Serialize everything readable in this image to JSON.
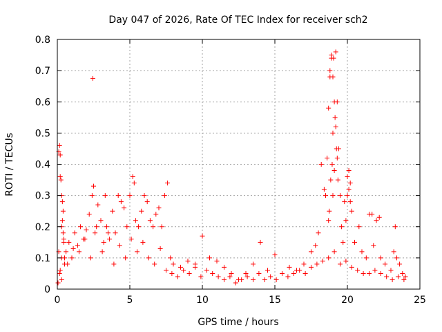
{
  "chart_data": {
    "type": "scatter",
    "title": "Day 047 of 2026, Rate Of TEC Index for receiver sch2",
    "xlabel": "GPS time / hours",
    "ylabel": "ROTI / TECUs",
    "xlim": [
      0,
      25
    ],
    "ylim": [
      0,
      0.8
    ],
    "x_ticks": [
      "0",
      "5",
      "10",
      "15",
      "20",
      "25"
    ],
    "y_ticks": [
      "0",
      "0.1",
      "0.2",
      "0.3",
      "0.4",
      "0.5",
      "0.6",
      "0.7",
      "0.8"
    ],
    "grid": true,
    "marker": "+",
    "marker_color": "#ff0000",
    "series": [
      {
        "x": [
          0.05,
          0.1,
          0.15,
          0.2,
          0.25,
          0.3,
          0.35,
          0.4,
          0.45,
          0.5,
          0.1,
          0.2,
          0.3,
          0.4,
          0.5,
          0.15,
          0.35,
          0.45,
          0.2,
          0.3,
          0.6,
          0.8,
          1.0,
          1.2,
          1.4,
          1.6,
          1.8,
          2.0,
          2.2,
          2.4,
          2.45,
          2.5,
          2.6,
          2.8,
          3.0,
          3.2,
          3.3,
          3.4,
          3.6,
          3.8,
          4.0,
          4.2,
          4.4,
          4.6,
          4.8,
          5.0,
          5.2,
          5.3,
          5.4,
          5.6,
          5.8,
          6.0,
          6.2,
          6.4,
          6.6,
          6.8,
          7.0,
          7.2,
          7.4,
          7.6,
          7.8,
          8.0,
          8.5,
          9.0,
          9.5,
          10.0,
          10.5,
          11.0,
          11.5,
          12.0,
          12.5,
          13.0,
          13.5,
          14.0,
          14.5,
          15.0,
          15.5,
          16.0,
          16.5,
          17.0,
          17.5,
          17.8,
          18.0,
          18.2,
          18.4,
          18.5,
          18.6,
          18.7,
          18.8,
          18.9,
          19.0,
          19.1,
          19.2,
          19.3,
          19.4,
          19.5,
          19.6,
          19.7,
          19.8,
          19.9,
          20.0,
          20.1,
          20.2,
          20.3,
          20.5,
          20.8,
          21.0,
          21.3,
          21.5,
          21.8,
          22.0,
          22.3,
          22.6,
          23.0,
          23.2,
          23.4,
          23.6,
          23.8,
          24.0,
          0.3,
          0.7,
          1.1,
          1.5,
          1.9,
          2.3,
          2.7,
          3.1,
          3.5,
          3.9,
          4.3,
          4.7,
          5.1,
          5.5,
          5.9,
          6.3,
          6.7,
          7.1,
          7.5,
          7.9,
          8.3,
          8.7,
          9.1,
          9.5,
          9.9,
          10.3,
          10.7,
          11.1,
          11.5,
          11.9,
          12.3,
          12.7,
          13.1,
          13.5,
          13.9,
          14.3,
          14.7,
          15.1,
          15.5,
          15.9,
          16.3,
          16.7,
          17.1,
          17.5,
          17.9,
          18.3,
          18.7,
          19.1,
          19.5,
          19.9,
          20.3,
          20.7,
          21.1,
          21.5,
          21.9,
          22.3,
          22.7,
          23.1,
          23.5,
          23.9,
          18.8,
          18.9,
          19.0,
          19.05,
          19.1,
          19.15,
          19.2,
          19.25,
          18.85,
          18.95,
          19.3,
          19.35,
          18.7,
          18.75,
          19.0,
          20.0,
          20.1,
          20.2,
          21.7,
          22.2,
          23.3
        ],
        "y": [
          0.02,
          0.44,
          0.46,
          0.43,
          0.35,
          0.3,
          0.28,
          0.25,
          0.15,
          0.08,
          0.12,
          0.36,
          0.2,
          0.18,
          0.1,
          0.05,
          0.22,
          0.16,
          0.06,
          0.03,
          0.12,
          0.15,
          0.1,
          0.18,
          0.14,
          0.2,
          0.16,
          0.19,
          0.24,
          0.3,
          0.675,
          0.33,
          0.18,
          0.27,
          0.22,
          0.15,
          0.3,
          0.2,
          0.16,
          0.25,
          0.18,
          0.3,
          0.28,
          0.26,
          0.2,
          0.3,
          0.36,
          0.34,
          0.22,
          0.2,
          0.25,
          0.3,
          0.28,
          0.22,
          0.2,
          0.24,
          0.26,
          0.2,
          0.3,
          0.34,
          0.1,
          0.08,
          0.07,
          0.09,
          0.08,
          0.17,
          0.1,
          0.09,
          0.07,
          0.05,
          0.03,
          0.05,
          0.08,
          0.15,
          0.06,
          0.11,
          0.05,
          0.07,
          0.06,
          0.08,
          0.12,
          0.14,
          0.18,
          0.4,
          0.32,
          0.3,
          0.42,
          0.58,
          0.7,
          0.75,
          0.5,
          0.38,
          0.76,
          0.6,
          0.45,
          0.3,
          0.2,
          0.15,
          0.28,
          0.22,
          0.3,
          0.38,
          0.34,
          0.25,
          0.15,
          0.2,
          0.12,
          0.1,
          0.24,
          0.14,
          0.22,
          0.1,
          0.08,
          0.06,
          0.12,
          0.1,
          0.08,
          0.05,
          0.04,
          0.1,
          0.08,
          0.13,
          0.12,
          0.16,
          0.1,
          0.2,
          0.12,
          0.18,
          0.08,
          0.14,
          0.1,
          0.16,
          0.12,
          0.15,
          0.1,
          0.08,
          0.13,
          0.06,
          0.05,
          0.04,
          0.06,
          0.05,
          0.07,
          0.04,
          0.06,
          0.05,
          0.04,
          0.03,
          0.04,
          0.02,
          0.03,
          0.04,
          0.03,
          0.05,
          0.03,
          0.04,
          0.03,
          0.05,
          0.04,
          0.05,
          0.06,
          0.05,
          0.07,
          0.08,
          0.09,
          0.1,
          0.12,
          0.08,
          0.09,
          0.07,
          0.06,
          0.05,
          0.05,
          0.06,
          0.05,
          0.04,
          0.03,
          0.04,
          0.03,
          0.68,
          0.74,
          0.68,
          0.74,
          0.6,
          0.55,
          0.52,
          0.45,
          0.35,
          0.4,
          0.42,
          0.35,
          0.22,
          0.25,
          0.3,
          0.36,
          0.32,
          0.28,
          0.24,
          0.23,
          0.2
        ]
      }
    ]
  }
}
